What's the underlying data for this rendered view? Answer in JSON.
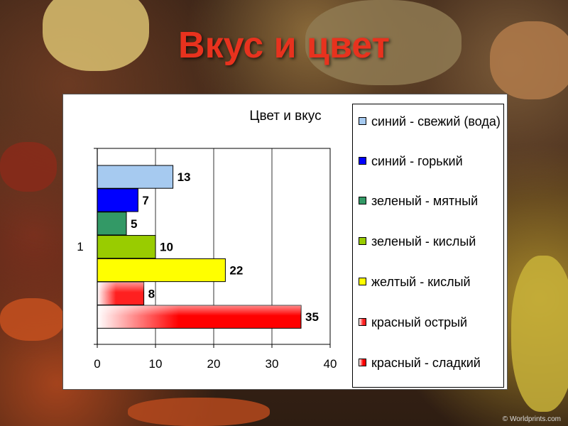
{
  "slide": {
    "title": "Вкус и цвет",
    "credit": "© Worldprints.com"
  },
  "chart_data": {
    "type": "bar",
    "orientation": "horizontal",
    "title": "Цвет и вкус",
    "categories": [
      "1"
    ],
    "xlim": [
      0,
      40
    ],
    "x_ticks": [
      "0",
      "10",
      "20",
      "30",
      "40"
    ],
    "grid": true,
    "legend_position": "right",
    "series": [
      {
        "name": "синий - свежий (вода)",
        "value": 13,
        "color": "#a6caf0"
      },
      {
        "name": "синий - горький",
        "value": 7,
        "color": "#0000ff"
      },
      {
        "name": "зеленый - мятный",
        "value": 5,
        "color": "#339966"
      },
      {
        "name": "зеленый - кислый",
        "value": 10,
        "color": "#99cc00"
      },
      {
        "name": "желтый - кислый",
        "value": 22,
        "color": "#ffff00"
      },
      {
        "name": "красный острый",
        "value": 8,
        "color": "#ff2020"
      },
      {
        "name": "красный - сладкий",
        "value": 35,
        "color": "#ff0000"
      }
    ]
  }
}
